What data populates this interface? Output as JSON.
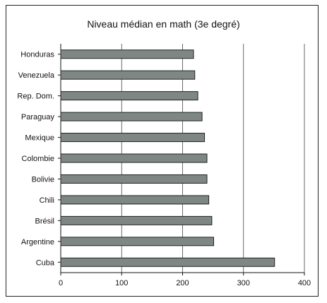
{
  "chart_data": {
    "type": "bar",
    "orientation": "horizontal",
    "title": "Niveau médian en math (3e degré)",
    "categories": [
      "Honduras",
      "Venezuela",
      "Rep. Dom.",
      "Paraguay",
      "Mexique",
      "Colombie",
      "Bolivie",
      "Chili",
      "Brésil",
      "Argentine",
      "Cuba"
    ],
    "values": [
      218,
      220,
      225,
      232,
      236,
      240,
      240,
      243,
      248,
      251,
      351
    ],
    "xlim": [
      0,
      400
    ],
    "x_ticks": [
      "0",
      "100",
      "200",
      "300",
      "400"
    ],
    "xlabel": "",
    "ylabel": "",
    "grid": "vertical lines",
    "bar_color": "#7f8784",
    "bar_edge_color": "#222222"
  }
}
